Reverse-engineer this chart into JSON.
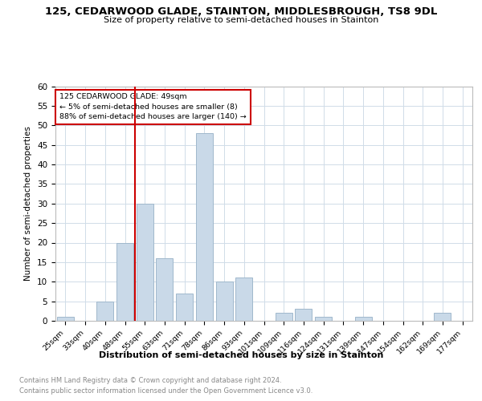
{
  "title": "125, CEDARWOOD GLADE, STAINTON, MIDDLESBROUGH, TS8 9DL",
  "subtitle": "Size of property relative to semi-detached houses in Stainton",
  "xlabel": "Distribution of semi-detached houses by size in Stainton",
  "ylabel": "Number of semi-detached properties",
  "categories": [
    "25sqm",
    "33sqm",
    "40sqm",
    "48sqm",
    "55sqm",
    "63sqm",
    "71sqm",
    "78sqm",
    "86sqm",
    "93sqm",
    "101sqm",
    "109sqm",
    "116sqm",
    "124sqm",
    "131sqm",
    "139sqm",
    "147sqm",
    "154sqm",
    "162sqm",
    "169sqm",
    "177sqm"
  ],
  "values": [
    1,
    0,
    5,
    20,
    30,
    16,
    7,
    48,
    10,
    11,
    0,
    2,
    3,
    1,
    0,
    1,
    0,
    0,
    0,
    2,
    0
  ],
  "bar_color": "#c9d9e8",
  "bar_edge_color": "#a0b8cc",
  "vline_x": 3.5,
  "vline_color": "#cc0000",
  "annotation_title": "125 CEDARWOOD GLADE: 49sqm",
  "annotation_line1": "← 5% of semi-detached houses are smaller (8)",
  "annotation_line2": "88% of semi-detached houses are larger (140) →",
  "annotation_box_color": "#cc0000",
  "ylim": [
    0,
    60
  ],
  "yticks": [
    0,
    5,
    10,
    15,
    20,
    25,
    30,
    35,
    40,
    45,
    50,
    55,
    60
  ],
  "footer1": "Contains HM Land Registry data © Crown copyright and database right 2024.",
  "footer2": "Contains public sector information licensed under the Open Government Licence v3.0.",
  "grid_color": "#d0dce8",
  "background_color": "#ffffff"
}
